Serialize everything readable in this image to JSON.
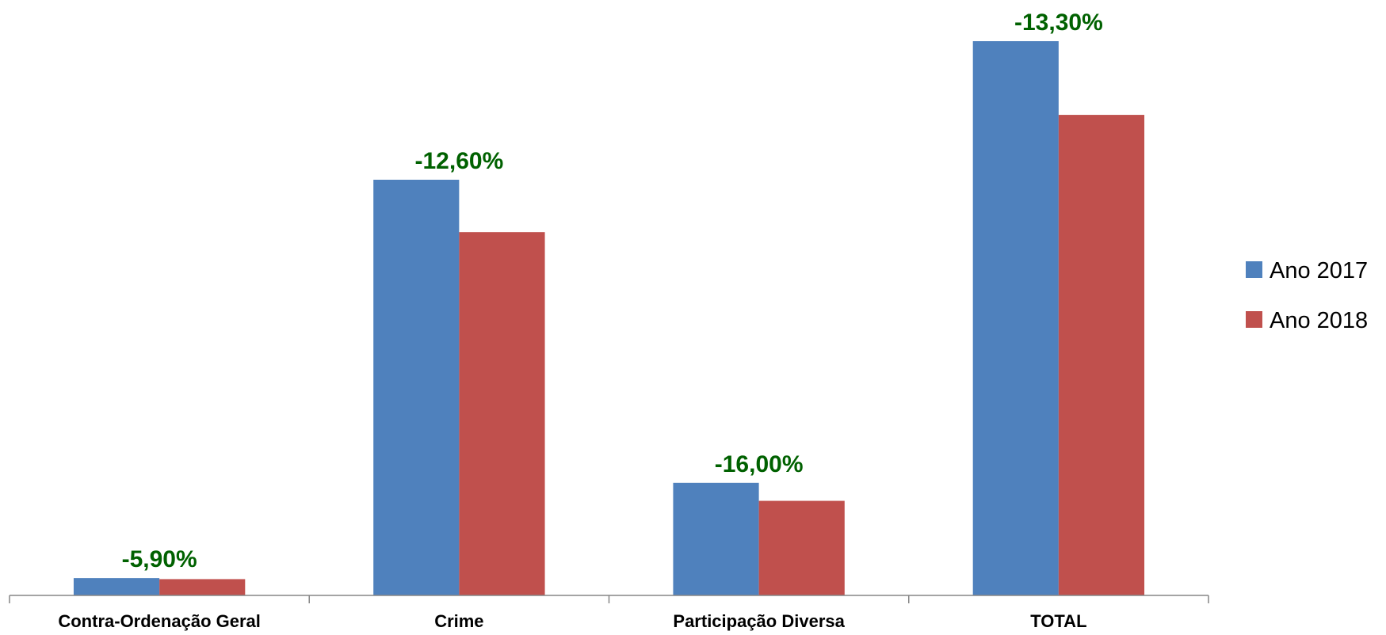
{
  "chart_data": {
    "type": "bar",
    "categories": [
      "Contra-Ordenação Geral",
      "Crime",
      "Participação Diversa",
      "TOTAL"
    ],
    "series": [
      {
        "name": "Ano 2017",
        "color": "#4F81BD",
        "values": [
          2.0,
          48.0,
          13.0,
          64.0
        ]
      },
      {
        "name": "Ano 2018",
        "color": "#C0504D",
        "values": [
          1.88,
          41.95,
          10.92,
          55.49
        ]
      }
    ],
    "data_labels": [
      "-5,90%",
      "-12,60%",
      "-16,00%",
      "-13,30%"
    ],
    "data_label_color": "#006100",
    "ylim": [
      0,
      70
    ],
    "grid": false,
    "legend_position": "right"
  }
}
